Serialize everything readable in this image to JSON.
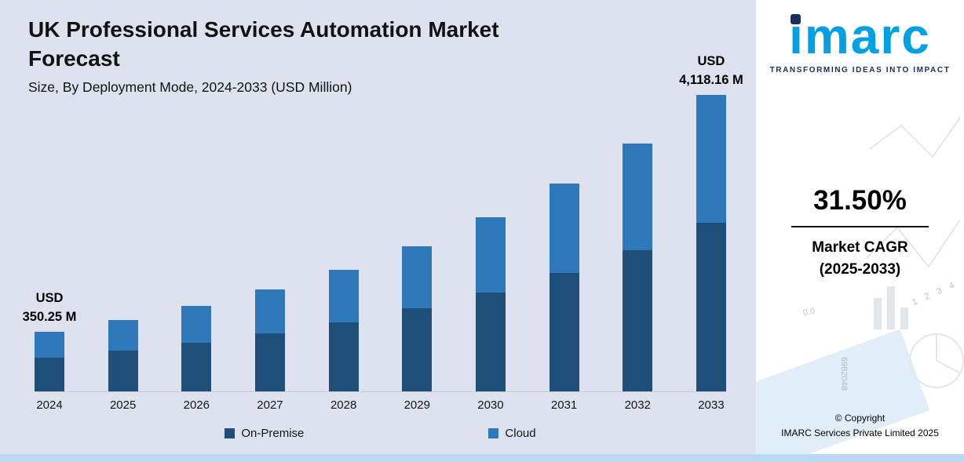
{
  "header": {
    "title_line1": "UK Professional Services Automation Market",
    "title_line2": "Forecast",
    "subtitle": "Size, By Deployment Mode, 2024-2033 (USD Million)"
  },
  "chart_data": {
    "type": "bar",
    "stacked": true,
    "title": "UK Professional Services Automation Market Forecast",
    "subtitle": "Size, By Deployment Mode, 2024-2033 (USD Million)",
    "xlabel": "",
    "ylabel": "USD Million",
    "grid": false,
    "value_axis_visible": false,
    "legend_position": "bottom",
    "categories": [
      "2024",
      "2025",
      "2026",
      "2027",
      "2028",
      "2029",
      "2030",
      "2031",
      "2032",
      "2033"
    ],
    "series": [
      {
        "name": "On-Premise",
        "color": "#1f4e79",
        "values": [
          199.64,
          262.53,
          345.23,
          453.98,
          596.98,
          785.02,
          1032.3,
          1357.48,
          1785.09,
          2347.35
        ]
      },
      {
        "name": "Cloud",
        "color": "#2e77b8",
        "values": [
          150.61,
          198.05,
          260.43,
          342.47,
          450.35,
          592.21,
          778.76,
          1024.07,
          1346.64,
          1770.81
        ]
      }
    ],
    "totals": [
      350.25,
      460.58,
      605.66,
      796.45,
      1047.33,
      1377.23,
      1811.06,
      2381.55,
      3131.73,
      4118.16
    ],
    "annotations": [
      {
        "category": "2024",
        "lines": [
          "USD",
          "350.25 M"
        ]
      },
      {
        "category": "2033",
        "lines": [
          "USD",
          "4,118.16 M"
        ]
      }
    ]
  },
  "sidebar": {
    "logo_text": "imarc",
    "tagline": "TRANSFORMING IDEAS INTO IMPACT",
    "cagr_value": "31.50%",
    "cagr_label_line1": "Market CAGR",
    "cagr_label_line2": "(2025-2033)",
    "copyright_line1": "© Copyright",
    "copyright_line2": "IMARC Services Private Limited 2025",
    "decor": {
      "a": "0.0",
      "b": "1 2 3 4",
      "c": "6982048"
    }
  }
}
